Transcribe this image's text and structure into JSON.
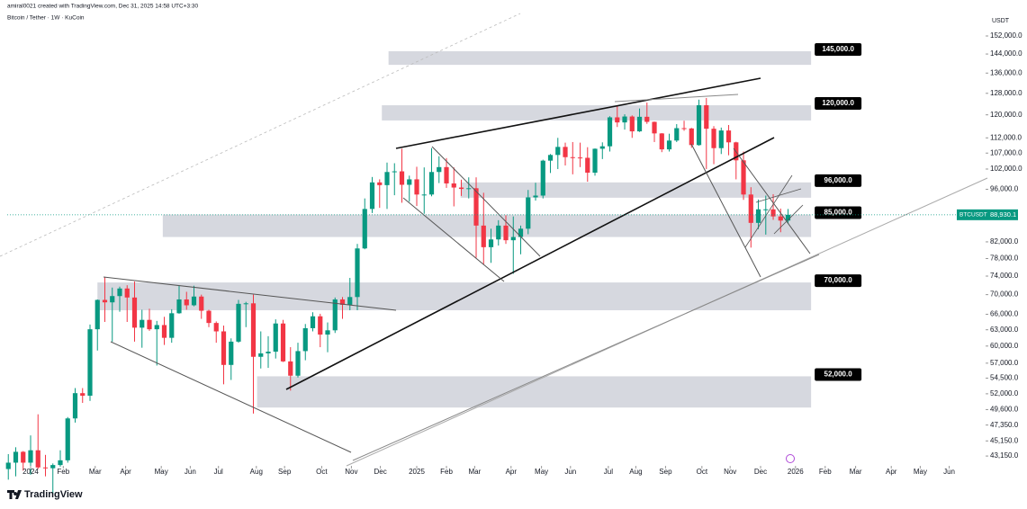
{
  "chart_data": {
    "type": "candlestick",
    "title": "Bitcoin / Tether · 1W · KuCoin",
    "attribution": "amiral0021 created with TradingView.com, Dec 31, 2025 14:58 UTC+3:30",
    "currency": "USDT",
    "brand": "TradingView",
    "up_color": "#089981",
    "down_color": "#f23645",
    "log_scale": true,
    "xlim": [
      -3.15,
      128.6
    ],
    "ylim": [
      41900,
      165700
    ],
    "xticks": [
      {
        "value": 0,
        "label": "2024"
      },
      {
        "value": 4.4,
        "label": "Feb"
      },
      {
        "value": 8.7,
        "label": "Mar"
      },
      {
        "value": 12.8,
        "label": "Apr"
      },
      {
        "value": 17.6,
        "label": "May"
      },
      {
        "value": 21.5,
        "label": "Jun"
      },
      {
        "value": 25.3,
        "label": "Jul"
      },
      {
        "value": 30.4,
        "label": "Aug"
      },
      {
        "value": 34.2,
        "label": "Sep"
      },
      {
        "value": 39.2,
        "label": "Oct"
      },
      {
        "value": 43.2,
        "label": "Nov"
      },
      {
        "value": 47.1,
        "label": "Dec"
      },
      {
        "value": 52,
        "label": "2025"
      },
      {
        "value": 56,
        "label": "Feb"
      },
      {
        "value": 59.8,
        "label": "Mar"
      },
      {
        "value": 64.7,
        "label": "Apr"
      },
      {
        "value": 68.8,
        "label": "May"
      },
      {
        "value": 72.7,
        "label": "Jun"
      },
      {
        "value": 77.8,
        "label": "Jul"
      },
      {
        "value": 81.5,
        "label": "Aug"
      },
      {
        "value": 85.5,
        "label": "Sep"
      },
      {
        "value": 90.4,
        "label": "Oct"
      },
      {
        "value": 94.2,
        "label": "Nov"
      },
      {
        "value": 98.3,
        "label": "Dec"
      },
      {
        "value": 103,
        "label": "2026"
      },
      {
        "value": 107,
        "label": "Feb"
      },
      {
        "value": 111.1,
        "label": "Mar"
      },
      {
        "value": 115.9,
        "label": "Apr"
      },
      {
        "value": 119.8,
        "label": "May"
      },
      {
        "value": 123.7,
        "label": "Jun"
      }
    ],
    "yticks": [
      {
        "value": 152000,
        "label": "152,000.0"
      },
      {
        "value": 144000,
        "label": "144,000.0"
      },
      {
        "value": 136000,
        "label": "136,000.0"
      },
      {
        "value": 128000,
        "label": "128,000.0"
      },
      {
        "value": 120000,
        "label": "120,000.0"
      },
      {
        "value": 112000,
        "label": "112,000.0"
      },
      {
        "value": 107000,
        "label": "107,000.0"
      },
      {
        "value": 102000,
        "label": "102,000.0"
      },
      {
        "value": 96000,
        "label": "96,000.0"
      },
      {
        "value": 82000,
        "label": "82,000.0"
      },
      {
        "value": 78000,
        "label": "78,000.0"
      },
      {
        "value": 74000,
        "label": "74,000.0"
      },
      {
        "value": 70000,
        "label": "70,000.0"
      },
      {
        "value": 66000,
        "label": "66,000.0"
      },
      {
        "value": 63000,
        "label": "63,000.0"
      },
      {
        "value": 60000,
        "label": "60,000.0"
      },
      {
        "value": 57000,
        "label": "57,000.0"
      },
      {
        "value": 54500,
        "label": "54,500.0"
      },
      {
        "value": 52000,
        "label": "52,000.0"
      },
      {
        "value": 49600,
        "label": "49,600.0"
      },
      {
        "value": 47350,
        "label": "47,350.0"
      },
      {
        "value": 45150,
        "label": "45,150.0"
      },
      {
        "value": 43150,
        "label": "43,150.0"
      }
    ],
    "x": [
      -3,
      -2,
      -1,
      0,
      1,
      2,
      3,
      4,
      5,
      6,
      7,
      8,
      9,
      10,
      11,
      12,
      13,
      14,
      15,
      16,
      17,
      18,
      19,
      20,
      21,
      22,
      23,
      24,
      25,
      26,
      27,
      28,
      29,
      30,
      31,
      32,
      33,
      34,
      35,
      36,
      37,
      38,
      39,
      40,
      41,
      42,
      43,
      44,
      45,
      46,
      47,
      48,
      49,
      50,
      51,
      52,
      53,
      54,
      55,
      56,
      57,
      58,
      59,
      60,
      61,
      62,
      63,
      64,
      65,
      66,
      67,
      68,
      69,
      70,
      71,
      72,
      73,
      74,
      75,
      76,
      77,
      78,
      79,
      80,
      81,
      82,
      83,
      84,
      85,
      86,
      87,
      88,
      89,
      90,
      91,
      92,
      93,
      94,
      95,
      96,
      97,
      98,
      99,
      100,
      101,
      102
    ],
    "candles": [
      [
        41500,
        43400,
        40200,
        42300
      ],
      [
        42300,
        44300,
        40600,
        43700
      ],
      [
        43700,
        43800,
        41300,
        42300
      ],
      [
        42300,
        45900,
        40800,
        43900
      ],
      [
        43900,
        48900,
        41500,
        41700
      ],
      [
        41700,
        43300,
        40600,
        41600
      ],
      [
        41600,
        42200,
        38500,
        42000
      ],
      [
        42000,
        43900,
        41800,
        42600
      ],
      [
        42600,
        48500,
        42300,
        48300
      ],
      [
        48300,
        52900,
        47700,
        52100
      ],
      [
        52100,
        52900,
        50600,
        51700
      ],
      [
        51700,
        64000,
        50900,
        63100
      ],
      [
        63100,
        69000,
        59200,
        68900
      ],
      [
        68900,
        73800,
        64500,
        68400
      ],
      [
        68400,
        71500,
        60800,
        69700
      ],
      [
        69700,
        71700,
        66500,
        71300
      ],
      [
        71300,
        72000,
        64500,
        69400
      ],
      [
        69400,
        72800,
        60800,
        63400
      ],
      [
        63400,
        66900,
        59700,
        64900
      ],
      [
        64900,
        67100,
        62800,
        63100
      ],
      [
        63100,
        64700,
        56600,
        63900
      ],
      [
        63900,
        65500,
        60200,
        61500
      ],
      [
        61500,
        67000,
        60600,
        66200
      ],
      [
        66200,
        71900,
        66100,
        69000
      ],
      [
        69000,
        70600,
        66900,
        67800
      ],
      [
        67800,
        71900,
        67600,
        69600
      ],
      [
        69600,
        70000,
        65100,
        66700
      ],
      [
        66700,
        66900,
        63500,
        64300
      ],
      [
        64300,
        64600,
        60600,
        62700
      ],
      [
        62700,
        63800,
        53500,
        56700
      ],
      [
        56700,
        61400,
        54200,
        60800
      ],
      [
        60800,
        68900,
        60600,
        68100
      ],
      [
        68100,
        68500,
        63500,
        68200
      ],
      [
        68200,
        70000,
        49000,
        58100
      ],
      [
        58100,
        62700,
        56100,
        58700
      ],
      [
        58700,
        61800,
        56200,
        59000
      ],
      [
        59000,
        65000,
        57800,
        64200
      ],
      [
        64200,
        64900,
        57200,
        57300
      ],
      [
        57300,
        59800,
        52500,
        54900
      ],
      [
        54900,
        60600,
        54600,
        59100
      ],
      [
        59100,
        64100,
        57500,
        63300
      ],
      [
        63300,
        66400,
        62700,
        65600
      ],
      [
        65600,
        66100,
        59800,
        62100
      ],
      [
        62100,
        64400,
        58900,
        62900
      ],
      [
        62900,
        69400,
        62400,
        69000
      ],
      [
        69000,
        69500,
        65100,
        67900
      ],
      [
        67900,
        73600,
        66800,
        69500
      ],
      [
        69500,
        81500,
        66800,
        80400
      ],
      [
        80400,
        93400,
        80200,
        90500
      ],
      [
        90500,
        99600,
        89400,
        98000
      ],
      [
        98000,
        98900,
        90800,
        97200
      ],
      [
        97200,
        104000,
        90500,
        101100
      ],
      [
        101100,
        103800,
        94300,
        101300
      ],
      [
        101300,
        108400,
        92200,
        97300
      ],
      [
        97300,
        100000,
        92500,
        98900
      ],
      [
        98900,
        102700,
        91300,
        94500
      ],
      [
        94500,
        102500,
        89200,
        94500
      ],
      [
        94500,
        108600,
        94000,
        101100
      ],
      [
        101100,
        106000,
        97800,
        102600
      ],
      [
        102600,
        105400,
        96400,
        97700
      ],
      [
        97700,
        102500,
        91200,
        96500
      ],
      [
        96500,
        98800,
        94100,
        96100
      ],
      [
        96100,
        99500,
        93400,
        96300
      ],
      [
        96300,
        99500,
        78200,
        86100
      ],
      [
        86100,
        95000,
        76600,
        80700
      ],
      [
        80700,
        85300,
        77000,
        82600
      ],
      [
        82600,
        87500,
        81100,
        86100
      ],
      [
        86100,
        88800,
        81500,
        82400
      ],
      [
        82400,
        88500,
        74500,
        83200
      ],
      [
        83200,
        86100,
        79000,
        85300
      ],
      [
        85300,
        95800,
        83900,
        93700
      ],
      [
        93700,
        97900,
        92800,
        94200
      ],
      [
        94200,
        104900,
        93400,
        104600
      ],
      [
        104600,
        106700,
        100800,
        106400
      ],
      [
        106400,
        112000,
        102000,
        109000
      ],
      [
        109000,
        110400,
        103100,
        105700
      ],
      [
        105700,
        110600,
        100400,
        105600
      ],
      [
        105600,
        110400,
        102600,
        105500
      ],
      [
        105500,
        108900,
        98200,
        100900
      ],
      [
        100900,
        108500,
        100000,
        108400
      ],
      [
        108400,
        110500,
        105100,
        109200
      ],
      [
        109200,
        119500,
        107500,
        119100
      ],
      [
        119100,
        123200,
        115700,
        117300
      ],
      [
        117300,
        120200,
        114800,
        119400
      ],
      [
        119400,
        119800,
        112000,
        114200
      ],
      [
        114200,
        122300,
        114000,
        119300
      ],
      [
        119300,
        124500,
        116800,
        117500
      ],
      [
        117500,
        117600,
        110600,
        113500
      ],
      [
        113500,
        113600,
        107300,
        108200
      ],
      [
        108200,
        113400,
        107500,
        111100
      ],
      [
        111100,
        116700,
        110600,
        115300
      ],
      [
        115300,
        117900,
        114400,
        115200
      ],
      [
        115200,
        115400,
        108700,
        109600
      ],
      [
        109600,
        125600,
        109400,
        123500
      ],
      [
        123500,
        126200,
        102000,
        115100
      ],
      [
        115100,
        116000,
        103500,
        108600
      ],
      [
        108600,
        115500,
        106700,
        114500
      ],
      [
        114500,
        116400,
        106300,
        110500
      ],
      [
        110500,
        110700,
        98900,
        104700
      ],
      [
        104700,
        107500,
        93000,
        94500
      ],
      [
        94500,
        96600,
        80600,
        86800
      ],
      [
        86800,
        93100,
        85200,
        90400
      ],
      [
        90400,
        94200,
        83800,
        90400
      ],
      [
        90400,
        94600,
        87600,
        88500
      ],
      [
        88500,
        90600,
        84400,
        87400
      ],
      [
        87400,
        90500,
        86600,
        88930.1
      ]
    ],
    "zones": [
      {
        "low": 139400,
        "high": 145200,
        "from": 48.2,
        "to": 105.1,
        "level": {
          "value": 145000,
          "label": "145,000.0"
        }
      },
      {
        "low": 118000,
        "high": 123500,
        "from": 47.3,
        "to": 105.1,
        "level": {
          "value": 120000,
          "label": "120,000.0"
        }
      },
      {
        "low": 93600,
        "high": 98000,
        "from": 57.9,
        "to": 105.1,
        "level": {
          "value": 96000,
          "label": "96,000.0"
        }
      },
      {
        "low": 83200,
        "high": 89000,
        "from": 17.8,
        "to": 105.1,
        "level": {
          "value": 85000,
          "label": "85,000.0"
        }
      },
      {
        "low": 66800,
        "high": 72600,
        "from": 9.0,
        "to": 105.1,
        "level": {
          "value": 70000,
          "label": "70,000.0"
        }
      },
      {
        "low": 49900,
        "high": 54800,
        "from": 30.5,
        "to": 105.1,
        "level": {
          "value": 52000,
          "label": "52,000.0"
        }
      }
    ],
    "last_price": {
      "name": "BTCUSDT",
      "value": 88930.1,
      "label": "88,930.1"
    }
  }
}
